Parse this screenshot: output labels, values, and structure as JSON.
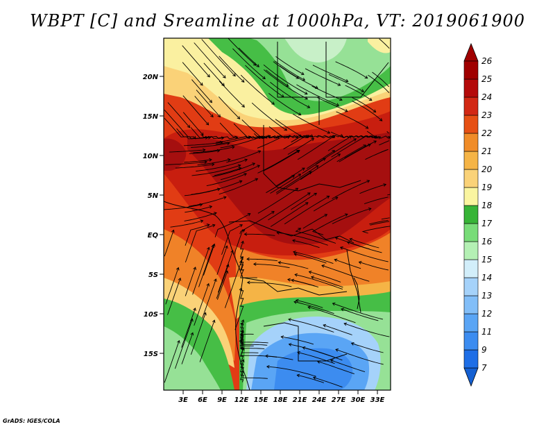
{
  "title": "WBPT [C] and Sreamline at 1000hPa, VT: 2019061900",
  "credit": "GrADS: IGES/COLA",
  "lat_labels": [
    "20N",
    "15N",
    "10N",
    "5N",
    "EQ",
    "5S",
    "10S",
    "15S"
  ],
  "lon_labels": [
    "3E",
    "6E",
    "9E",
    "12E",
    "15E",
    "18E",
    "21E",
    "24E",
    "27E",
    "30E",
    "33E"
  ],
  "colorbar": {
    "levels": [
      "7",
      "9",
      "11",
      "12",
      "13",
      "14",
      "15",
      "16",
      "17",
      "18",
      "19",
      "20",
      "21",
      "22",
      "23",
      "24",
      "25",
      "26"
    ],
    "colors": [
      "#1460d2",
      "#1e6ee6",
      "#3c8cf0",
      "#5aa5f5",
      "#82bef8",
      "#a5d2fa",
      "#d2eefa",
      "#b4f0b4",
      "#78dc78",
      "#37b437",
      "#faf5a0",
      "#fad278",
      "#f5b446",
      "#f08c28",
      "#e65014",
      "#d22814",
      "#b40a0a",
      "#a00000"
    ],
    "top_color": "#a00000",
    "bottom_color": "#1460d2"
  },
  "field_colors": {
    "deep_red": "#a50f0f",
    "red": "#c81e0f",
    "red_orange": "#e13c14",
    "orange": "#f08228",
    "light_orange": "#f5b446",
    "tan": "#fad278",
    "pale_yellow": "#faf0a0",
    "green": "#46be46",
    "light_green": "#96e196",
    "pale_green": "#c8f0c8",
    "light_blue": "#a5d2fa",
    "blue": "#5aa5f5",
    "deep_blue": "#3c8cf0"
  }
}
